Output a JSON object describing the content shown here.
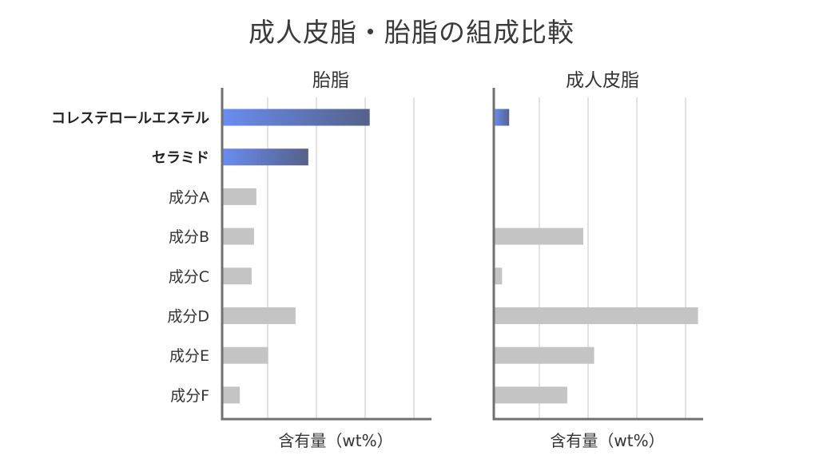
{
  "title": "成人皮脂・胎脂の組成比較",
  "chart_data": [
    {
      "type": "bar",
      "orientation": "horizontal",
      "title": "胎脂",
      "xlabel": "含有量（wt%）",
      "categories": [
        "コレステロールエステル",
        "セラミド",
        "成分A",
        "成分B",
        "成分C",
        "成分D",
        "成分E",
        "成分F"
      ],
      "highlighted": [
        "コレステロールエステル",
        "セラミド"
      ],
      "values": [
        31,
        18,
        7,
        6.5,
        6,
        15.3,
        9.5,
        3.5
      ],
      "xlim": [
        0,
        44
      ],
      "grid": "vertical"
    },
    {
      "type": "bar",
      "orientation": "horizontal",
      "title": "成人皮脂",
      "xlabel": "含有量（wt%）",
      "categories": [
        "コレステロールエステル",
        "セラミド",
        "成分A",
        "成分B",
        "成分C",
        "成分D",
        "成分E",
        "成分F"
      ],
      "highlighted": [
        "コレステロールエステル"
      ],
      "values": [
        3,
        0,
        0,
        18.7,
        1.5,
        43,
        21,
        15.3
      ],
      "xlim": [
        0,
        44
      ],
      "grid": "vertical"
    }
  ],
  "colors": {
    "highlight_start": "#6a8cf0",
    "highlight_end": "#556189",
    "normal": "#c4c4c4",
    "axis": "#707070",
    "grid": "#d8d8d8"
  }
}
